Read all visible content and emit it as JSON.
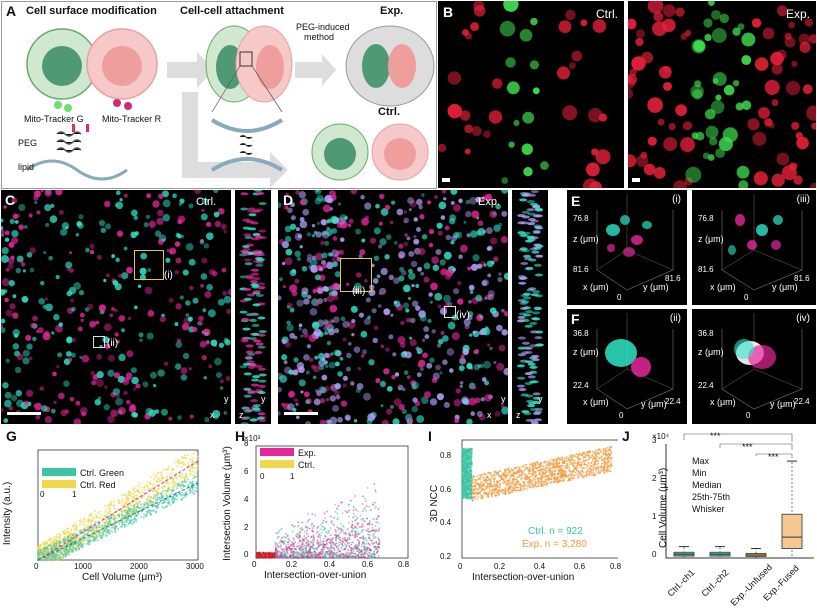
{
  "panel_labels": {
    "a": "A",
    "b": "B",
    "c": "C",
    "d": "D",
    "e": "E",
    "f": "F",
    "g": "G",
    "h": "H",
    "i": "I",
    "j": "J"
  },
  "panelA": {
    "surface_title": "Cell surface modification",
    "attach_title": "Cell-cell attachment",
    "peg_method": "PEG-induced",
    "peg_method2": "method",
    "exp": "Exp.",
    "ctrl": "Ctrl.",
    "mito_g": "Mito-Tracker G",
    "mito_r": "Mito-Tracker R",
    "peg": "PEG",
    "lipid": "lipid"
  },
  "panelB": {
    "ctrl": "Ctrl.",
    "exp": "Exp."
  },
  "panelC": {
    "label": "Ctrl.",
    "roi1": "(i)",
    "roi2": "(ii)",
    "ax_x": "x",
    "ax_y": "y",
    "ax_z": "z"
  },
  "panelD": {
    "label": "Exp.",
    "roi1": "(iii)",
    "roi2": "(iv)",
    "ax_x": "x",
    "ax_y": "y",
    "ax_z": "z"
  },
  "panelE": {
    "tag1": "(i)",
    "tag2": "(iii)",
    "z_max": "76.8",
    "xy_max": "81.6",
    "zero": "0",
    "zlabel": "z (μm)",
    "xlabel": "x (μm)",
    "ylabel": "y (μm)"
  },
  "panelF": {
    "tag1": "(ii)",
    "tag2": "(iv)",
    "z_max": "36.8",
    "xy_max": "22.4",
    "zero": "0",
    "zlabel": "z (μm)",
    "xlabel": "x (μm)",
    "ylabel": "y (μm)"
  },
  "colors": {
    "cyan": "#2ee6c8",
    "magenta": "#e8279b",
    "green": "#3fe050",
    "red": "#e8203a",
    "orange": "#f29a3a",
    "teal": "#3cc4a4",
    "yellow": "#f0d84a"
  },
  "chart_data": [
    {
      "id": "G",
      "type": "scatter",
      "xlabel": "Cell Volume (μm³)",
      "ylabel": "Intensity (a.u.)",
      "xlim": [
        0,
        3000
      ],
      "xticks": [
        "0",
        "1000",
        "2000",
        "3000"
      ],
      "legend": [
        "Ctrl. Green",
        "Ctrl. Red"
      ],
      "colorbar_ticks": [
        "0",
        "1"
      ],
      "series": [
        {
          "name": "Ctrl. Green",
          "trend": "linear"
        },
        {
          "name": "Ctrl. Red",
          "trend": "linear"
        }
      ]
    },
    {
      "id": "H",
      "type": "scatter",
      "xlabel": "Intersection-over-union",
      "ylabel": "Intersection Volume (μm³)",
      "xlim": [
        0,
        0.8
      ],
      "ylim": [
        0,
        8000
      ],
      "exponent": "×10³",
      "xticks": [
        "0",
        "0.2",
        "0.4",
        "0.6",
        "0.8"
      ],
      "yticks": [
        "0",
        "2",
        "4",
        "6",
        "8"
      ],
      "legend": [
        "Exp.",
        "Ctrl."
      ],
      "colorbar_ticks": [
        "0",
        "1"
      ]
    },
    {
      "id": "I",
      "type": "scatter",
      "xlabel": "Intersection-over-union",
      "ylabel": "3D NCC",
      "xlim": [
        0,
        0.8
      ],
      "ylim": [
        0.2,
        0.9
      ],
      "xticks": [
        "0",
        "0.2",
        "0.4",
        "0.6",
        "0.8"
      ],
      "yticks": [
        "0.2",
        "0.4",
        "0.6",
        "0.8"
      ],
      "legend_ctrl": "Ctrl. n = 922",
      "legend_exp": "Exp. n = 3,280",
      "series": [
        {
          "name": "Ctrl.",
          "n": 922
        },
        {
          "name": "Exp.",
          "n": 3280
        }
      ]
    },
    {
      "id": "J",
      "type": "box",
      "ylabel": "Cell Volume (μm³)",
      "exponent": "×10⁴",
      "ylim": [
        0,
        3
      ],
      "yticks": [
        "0",
        "1",
        "2",
        "3"
      ],
      "categories": [
        "Ctrl.-ch1",
        "Ctrl.-ch2",
        "Exp.-Unfused",
        "Exp.-Fused"
      ],
      "legend": [
        "Max",
        "Min",
        "Median",
        "25th-75th",
        "Whisker"
      ],
      "significance": [
        "***",
        "***",
        "***"
      ],
      "boxes": [
        {
          "name": "Ctrl.-ch1",
          "q1": 0.05,
          "median": 0.1,
          "q3": 0.15,
          "min": 0.02,
          "max": 0.3
        },
        {
          "name": "Ctrl.-ch2",
          "q1": 0.05,
          "median": 0.1,
          "q3": 0.15,
          "min": 0.02,
          "max": 0.3
        },
        {
          "name": "Exp.-Unfused",
          "q1": 0.04,
          "median": 0.08,
          "q3": 0.12,
          "min": 0.01,
          "max": 0.25
        },
        {
          "name": "Exp.-Fused",
          "q1": 0.25,
          "median": 0.55,
          "q3": 1.15,
          "min": 0.05,
          "max": 2.55
        }
      ]
    }
  ]
}
